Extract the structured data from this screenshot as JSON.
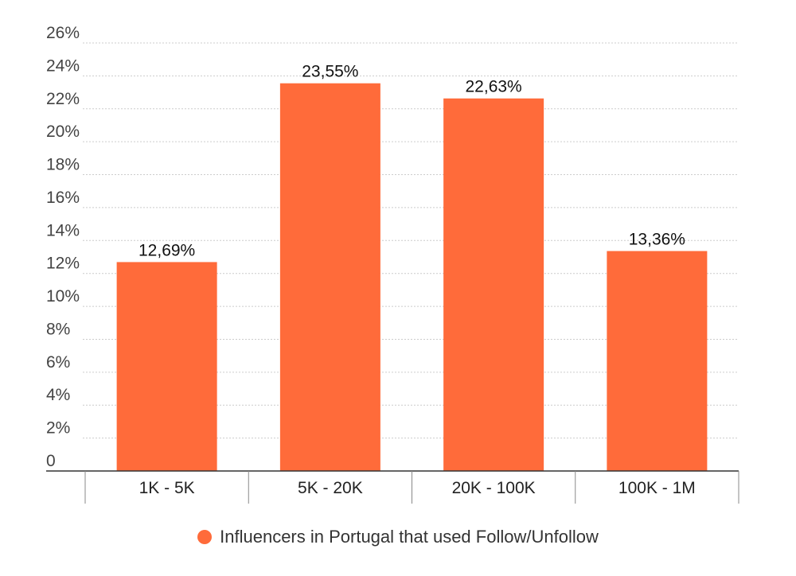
{
  "chart_data": {
    "type": "bar",
    "categories": [
      "1K - 5K",
      "5K - 20K",
      "20K - 100K",
      "100K - 1M"
    ],
    "series": [
      {
        "name": "Influencers in Portugal that used Follow/Unfollow",
        "values": [
          12.69,
          23.55,
          22.63,
          13.36
        ],
        "data_labels": [
          "12,69%",
          "23,55%",
          "22,63%",
          "13,36%"
        ]
      }
    ],
    "y_ticks": [
      "0",
      "2%",
      "4%",
      "6%",
      "8%",
      "10%",
      "12%",
      "14%",
      "16%",
      "18%",
      "20%",
      "22%",
      "24%",
      "26%"
    ],
    "ylim": [
      0,
      26
    ],
    "grid": true,
    "legend_position": "bottom",
    "colors": {
      "bar": "#ff6b3a",
      "grid": "#cccccc",
      "axis": "#333333"
    }
  }
}
